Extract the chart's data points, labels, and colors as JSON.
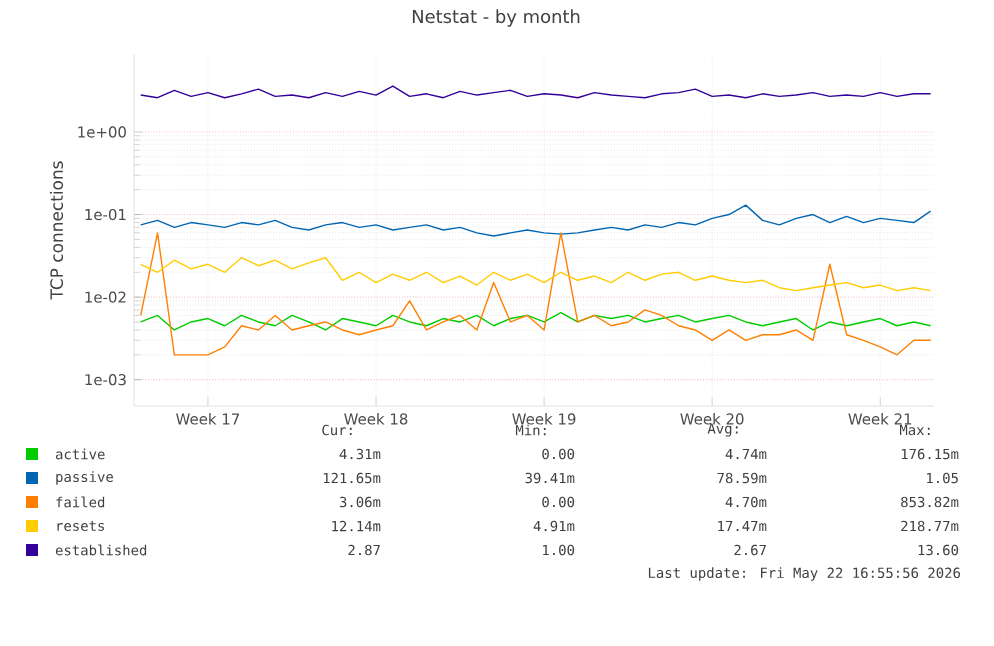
{
  "chart_data": {
    "type": "line",
    "title": "Netstat - by month",
    "ylabel": "TCP connections",
    "categories": [
      null,
      null,
      null,
      null,
      "Week 17",
      null,
      null,
      null,
      null,
      null,
      null,
      null,
      null,
      null,
      "Week 18",
      null,
      null,
      null,
      null,
      null,
      null,
      null,
      null,
      null,
      "Week 19",
      null,
      null,
      null,
      null,
      null,
      null,
      null,
      null,
      null,
      "Week 20",
      null,
      null,
      null,
      null,
      null,
      null,
      null,
      null,
      null,
      "Week 21",
      null,
      null,
      null
    ],
    "series": [
      {
        "name": "active",
        "color": "#00cc00",
        "values": [
          0.005,
          0.006,
          0.004,
          0.005,
          0.0055,
          0.0045,
          0.006,
          0.005,
          0.0045,
          0.006,
          0.005,
          0.004,
          0.0055,
          0.005,
          0.0045,
          0.006,
          0.005,
          0.0045,
          0.0055,
          0.005,
          0.006,
          0.0045,
          0.0055,
          0.006,
          0.005,
          0.0065,
          0.005,
          0.006,
          0.0055,
          0.006,
          0.005,
          0.0055,
          0.006,
          0.005,
          0.0055,
          0.006,
          0.005,
          0.0045,
          0.005,
          0.0055,
          0.004,
          0.005,
          0.0045,
          0.005,
          0.0055,
          0.0045,
          0.005,
          0.0045
        ]
      },
      {
        "name": "passive",
        "color": "#0066b3",
        "values": [
          0.075,
          0.085,
          0.07,
          0.08,
          0.075,
          0.07,
          0.08,
          0.075,
          0.085,
          0.07,
          0.065,
          0.075,
          0.08,
          0.07,
          0.075,
          0.065,
          0.07,
          0.075,
          0.065,
          0.07,
          0.06,
          0.055,
          0.06,
          0.065,
          0.06,
          0.058,
          0.06,
          0.065,
          0.07,
          0.065,
          0.075,
          0.07,
          0.08,
          0.075,
          0.09,
          0.1,
          0.13,
          0.085,
          0.075,
          0.09,
          0.1,
          0.08,
          0.095,
          0.08,
          0.09,
          0.085,
          0.08,
          0.11
        ]
      },
      {
        "name": "failed",
        "color": "#ff8000",
        "values": [
          0.006,
          0.06,
          0.002,
          0.002,
          0.002,
          0.0025,
          0.0045,
          0.004,
          0.006,
          0.004,
          0.0045,
          0.005,
          0.004,
          0.0035,
          0.004,
          0.0045,
          0.009,
          0.004,
          0.005,
          0.006,
          0.004,
          0.015,
          0.005,
          0.006,
          0.004,
          0.06,
          0.005,
          0.006,
          0.0045,
          0.005,
          0.007,
          0.006,
          0.0045,
          0.004,
          0.003,
          0.004,
          0.003,
          0.0035,
          0.0035,
          0.004,
          0.003,
          0.025,
          0.0035,
          0.003,
          0.0025,
          0.002,
          0.003,
          0.003
        ]
      },
      {
        "name": "resets",
        "color": "#ffcc00",
        "values": [
          0.025,
          0.02,
          0.028,
          0.022,
          0.025,
          0.02,
          0.03,
          0.024,
          0.028,
          0.022,
          0.026,
          0.03,
          0.016,
          0.02,
          0.015,
          0.019,
          0.016,
          0.02,
          0.015,
          0.018,
          0.014,
          0.02,
          0.016,
          0.019,
          0.015,
          0.02,
          0.016,
          0.018,
          0.015,
          0.02,
          0.016,
          0.019,
          0.02,
          0.016,
          0.018,
          0.016,
          0.015,
          0.016,
          0.013,
          0.012,
          0.013,
          0.014,
          0.015,
          0.013,
          0.014,
          0.012,
          0.013,
          0.012
        ]
      },
      {
        "name": "established",
        "color": "#330099",
        "values": [
          2.8,
          2.6,
          3.2,
          2.7,
          3.0,
          2.6,
          2.9,
          3.3,
          2.7,
          2.8,
          2.6,
          3.0,
          2.7,
          3.1,
          2.8,
          3.6,
          2.7,
          2.9,
          2.6,
          3.1,
          2.8,
          3.0,
          3.2,
          2.7,
          2.9,
          2.8,
          2.6,
          3.0,
          2.8,
          2.7,
          2.6,
          2.9,
          3.0,
          3.3,
          2.7,
          2.8,
          2.6,
          2.9,
          2.7,
          2.8,
          3.0,
          2.7,
          2.8,
          2.7,
          3.0,
          2.7,
          2.9,
          2.9
        ]
      }
    ],
    "log": "y",
    "grid": true,
    "legend": "bottom",
    "line_style": "solid",
    "marker": "none",
    "ylim": [
      0.00048,
      8.8
    ],
    "yticks": [
      {
        "value": 0.001,
        "label": "1e-03"
      },
      {
        "value": 0.01,
        "label": "1e-02"
      },
      {
        "value": 0.1,
        "label": "1e-01"
      },
      {
        "value": 1,
        "label": "1e+00"
      }
    ],
    "annotations": [
      "Cur:",
      "Min:",
      "Avg:",
      "Max:",
      "4.31m",
      "0.00",
      "4.74m",
      "176.15m",
      "121.65m",
      "39.41m",
      "78.59m",
      "1.05",
      "3.06m",
      "0.00",
      "4.70m",
      "853.82m",
      "12.14m",
      "4.91m",
      "17.47m",
      "218.77m",
      "2.87",
      "1.00",
      "2.67",
      "13.60",
      "Last update: Fri May 22 16:55:56 2026"
    ]
  }
}
